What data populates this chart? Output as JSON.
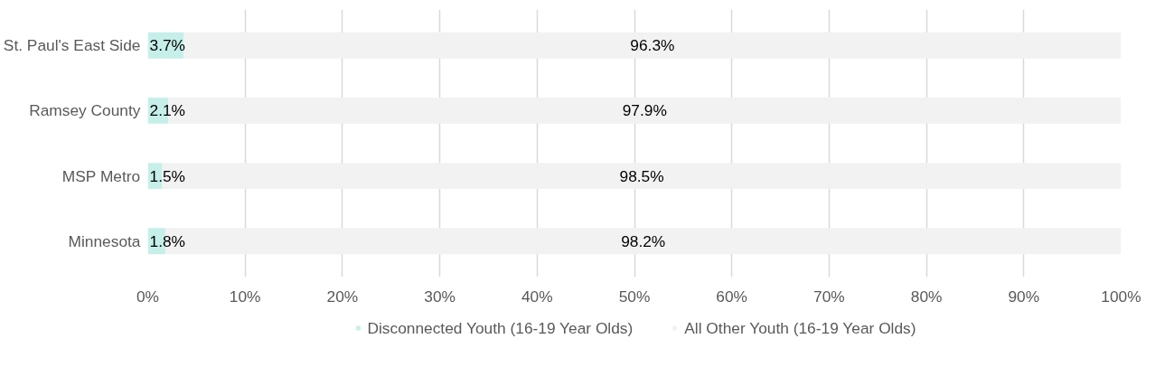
{
  "chart_data": {
    "type": "bar",
    "orientation": "horizontal",
    "stacked": true,
    "categories": [
      "St. Paul's East Side",
      "Ramsey County",
      "MSP Metro",
      "Minnesota"
    ],
    "series": [
      {
        "name": "Disconnected Youth (16-19 Year Olds)",
        "color": "#c6efe9",
        "values": [
          3.7,
          2.1,
          1.5,
          1.8
        ],
        "value_labels": [
          "3.7%",
          "2.1%",
          "1.5%",
          "1.8%"
        ]
      },
      {
        "name": "All Other Youth (16-19 Year Olds)",
        "color": "#f2f2f2",
        "values": [
          96.3,
          97.9,
          98.5,
          98.2
        ],
        "value_labels": [
          "96.3%",
          "97.9%",
          "98.5%",
          "98.2%"
        ]
      }
    ],
    "xlim": [
      0,
      100
    ],
    "xticks": [
      {
        "value": 0,
        "label": "0%"
      },
      {
        "value": 10,
        "label": "10%"
      },
      {
        "value": 20,
        "label": "20%"
      },
      {
        "value": 30,
        "label": "30%"
      },
      {
        "value": 40,
        "label": "40%"
      },
      {
        "value": 50,
        "label": "50%"
      },
      {
        "value": 60,
        "label": "60%"
      },
      {
        "value": 70,
        "label": "70%"
      },
      {
        "value": 80,
        "label": "80%"
      },
      {
        "value": 90,
        "label": "90%"
      },
      {
        "value": 100,
        "label": "100%"
      }
    ],
    "grid": "x",
    "legend": "bottom"
  }
}
